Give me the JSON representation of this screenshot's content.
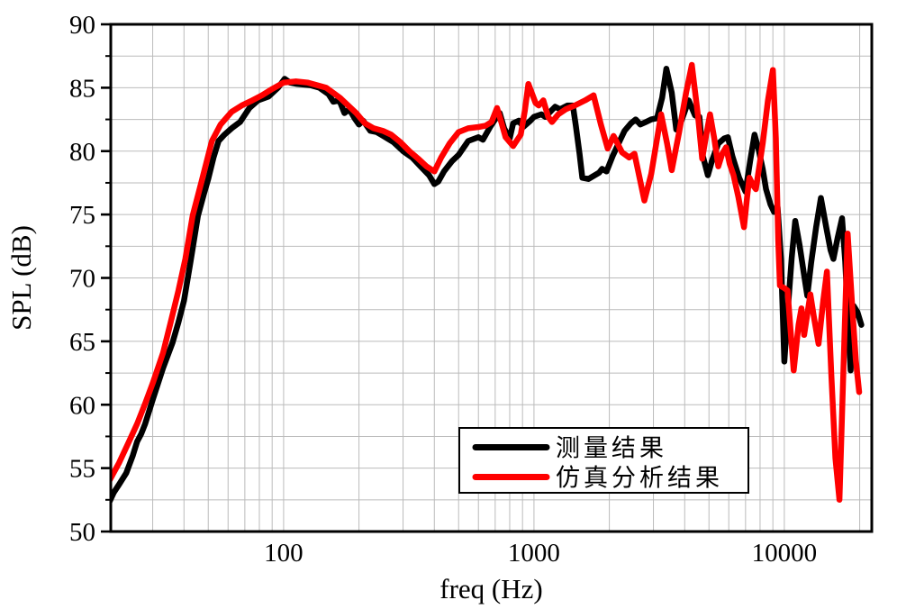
{
  "figure": {
    "background": "#ffffff",
    "frame_color": "#000000",
    "grid_color": "#bbbbbb"
  },
  "chart_data": {
    "type": "line",
    "title": "",
    "xlabel": "freq (Hz)",
    "ylabel": "SPL (dB)",
    "x_scale": "log",
    "xlim": [
      20.4,
      22350
    ],
    "ylim": [
      50,
      90
    ],
    "x_major_ticks": [
      100,
      1000,
      10000
    ],
    "x_tick_labels": [
      "100",
      "1000",
      "10000"
    ],
    "y_major_ticks": [
      50,
      55,
      60,
      65,
      70,
      75,
      80,
      85,
      90
    ],
    "y_tick_labels": [
      "50",
      "55",
      "60",
      "65",
      "70",
      "75",
      "80",
      "85",
      "90"
    ],
    "y_minor_step": 2.5,
    "grid": true,
    "legend_position": "inside-bottom-center",
    "legend": {
      "entries": [
        {
          "label": "测量结果",
          "color": "#000000"
        },
        {
          "label": "仿真分析结果",
          "color": "#ff0000"
        }
      ]
    },
    "series": [
      {
        "name": "测量结果",
        "color": "#000000",
        "points": [
          [
            20,
            52.2
          ],
          [
            21,
            53.1
          ],
          [
            22,
            53.7
          ],
          [
            23.5,
            54.6
          ],
          [
            25,
            56.0
          ],
          [
            26,
            57.1
          ],
          [
            27,
            57.7
          ],
          [
            28,
            58.5
          ],
          [
            30,
            60.4
          ],
          [
            33,
            62.9
          ],
          [
            36,
            64.9
          ],
          [
            38,
            66.5
          ],
          [
            40,
            68.2
          ],
          [
            42.5,
            71.3
          ],
          [
            45.5,
            74.9
          ],
          [
            48,
            76.6
          ],
          [
            50,
            77.8
          ],
          [
            52.5,
            79.5
          ],
          [
            55,
            80.8
          ],
          [
            58,
            81.3
          ],
          [
            62,
            81.8
          ],
          [
            67,
            82.3
          ],
          [
            73,
            83.4
          ],
          [
            79,
            84.0
          ],
          [
            87,
            84.3
          ],
          [
            95,
            85.0
          ],
          [
            101,
            85.7
          ],
          [
            106,
            85.4
          ],
          [
            113,
            85.3
          ],
          [
            128,
            85.2
          ],
          [
            139,
            85.0
          ],
          [
            151,
            84.5
          ],
          [
            158,
            83.9
          ],
          [
            167,
            84.0
          ],
          [
            175,
            83.0
          ],
          [
            183,
            83.3
          ],
          [
            192,
            82.6
          ],
          [
            200,
            82.1
          ],
          [
            208,
            82.4
          ],
          [
            222,
            81.6
          ],
          [
            235,
            81.5
          ],
          [
            245,
            81.3
          ],
          [
            255,
            81.1
          ],
          [
            275,
            80.7
          ],
          [
            300,
            80.0
          ],
          [
            326,
            79.5
          ],
          [
            352,
            78.8
          ],
          [
            381,
            78.1
          ],
          [
            400,
            77.4
          ],
          [
            415,
            77.6
          ],
          [
            437,
            78.4
          ],
          [
            470,
            79.2
          ],
          [
            500,
            79.7
          ],
          [
            546,
            80.8
          ],
          [
            600,
            81.1
          ],
          [
            625,
            80.9
          ],
          [
            668,
            81.9
          ],
          [
            700,
            82.5
          ],
          [
            730,
            83.0
          ],
          [
            760,
            81.8
          ],
          [
            800,
            81.0
          ],
          [
            826,
            82.2
          ],
          [
            870,
            82.4
          ],
          [
            905,
            81.9
          ],
          [
            967,
            82.4
          ],
          [
            1000,
            82.7
          ],
          [
            1070,
            82.9
          ],
          [
            1110,
            82.7
          ],
          [
            1215,
            83.5
          ],
          [
            1270,
            83.3
          ],
          [
            1360,
            83.6
          ],
          [
            1430,
            83.6
          ],
          [
            1470,
            82.0
          ],
          [
            1520,
            79.8
          ],
          [
            1560,
            77.9
          ],
          [
            1650,
            77.8
          ],
          [
            1820,
            78.3
          ],
          [
            1870,
            78.6
          ],
          [
            1950,
            78.4
          ],
          [
            2060,
            79.6
          ],
          [
            2200,
            80.8
          ],
          [
            2300,
            81.6
          ],
          [
            2440,
            82.2
          ],
          [
            2550,
            82.5
          ],
          [
            2660,
            82.1
          ],
          [
            2800,
            82.3
          ],
          [
            2940,
            82.5
          ],
          [
            3100,
            82.6
          ],
          [
            3250,
            84.2
          ],
          [
            3380,
            86.5
          ],
          [
            3550,
            84.6
          ],
          [
            3700,
            81.7
          ],
          [
            3900,
            82.5
          ],
          [
            4150,
            84.0
          ],
          [
            4400,
            82.8
          ],
          [
            4580,
            82.7
          ],
          [
            4730,
            79.6
          ],
          [
            4950,
            78.1
          ],
          [
            5150,
            79.3
          ],
          [
            5450,
            80.6
          ],
          [
            5750,
            81.0
          ],
          [
            5950,
            81.1
          ],
          [
            6200,
            79.6
          ],
          [
            6600,
            77.9
          ],
          [
            7000,
            76.8
          ],
          [
            7300,
            79.2
          ],
          [
            7600,
            81.3
          ],
          [
            7900,
            80.1
          ],
          [
            8200,
            78.6
          ],
          [
            8450,
            77.0
          ],
          [
            8800,
            75.8
          ],
          [
            9100,
            75.2
          ],
          [
            9400,
            75.6
          ],
          [
            9700,
            71.5
          ],
          [
            10000,
            63.4
          ],
          [
            10350,
            67.8
          ],
          [
            10700,
            71.6
          ],
          [
            11050,
            74.5
          ],
          [
            11500,
            72.6
          ],
          [
            12000,
            70.2
          ],
          [
            12350,
            68.6
          ],
          [
            12800,
            71.2
          ],
          [
            13400,
            74.0
          ],
          [
            14000,
            76.3
          ],
          [
            14700,
            74.0
          ],
          [
            15300,
            72.2
          ],
          [
            15700,
            71.5
          ],
          [
            16300,
            73.1
          ],
          [
            17000,
            74.7
          ],
          [
            17500,
            71.3
          ],
          [
            18000,
            66.3
          ],
          [
            18400,
            62.7
          ],
          [
            18900,
            67.8
          ],
          [
            19600,
            67.3
          ],
          [
            20300,
            66.3
          ]
        ]
      },
      {
        "name": "仿真分析结果",
        "color": "#ff0000",
        "points": [
          [
            20,
            53.9
          ],
          [
            22,
            55.4
          ],
          [
            24,
            57.0
          ],
          [
            26,
            58.5
          ],
          [
            28,
            60.1
          ],
          [
            30,
            61.7
          ],
          [
            33,
            64.1
          ],
          [
            35.4,
            66.5
          ],
          [
            38,
            69.0
          ],
          [
            40.5,
            71.5
          ],
          [
            43.3,
            74.9
          ],
          [
            47,
            77.6
          ],
          [
            51.7,
            80.8
          ],
          [
            56,
            82.1
          ],
          [
            62,
            83.1
          ],
          [
            68,
            83.6
          ],
          [
            75,
            84.0
          ],
          [
            82,
            84.4
          ],
          [
            90,
            84.9
          ],
          [
            100,
            85.4
          ],
          [
            112,
            85.5
          ],
          [
            125,
            85.4
          ],
          [
            148,
            85.0
          ],
          [
            168,
            84.2
          ],
          [
            195,
            83.0
          ],
          [
            211,
            82.2
          ],
          [
            229,
            81.8
          ],
          [
            249,
            81.6
          ],
          [
            269,
            81.3
          ],
          [
            293,
            80.7
          ],
          [
            318,
            80.0
          ],
          [
            345,
            79.4
          ],
          [
            372,
            78.8
          ],
          [
            400,
            78.4
          ],
          [
            426,
            79.5
          ],
          [
            460,
            80.6
          ],
          [
            500,
            81.5
          ],
          [
            546,
            81.8
          ],
          [
            600,
            81.9
          ],
          [
            640,
            82.0
          ],
          [
            677,
            82.3
          ],
          [
            712,
            83.4
          ],
          [
            740,
            82.3
          ],
          [
            770,
            81.1
          ],
          [
            826,
            80.4
          ],
          [
            885,
            81.3
          ],
          [
            920,
            83.2
          ],
          [
            950,
            85.3
          ],
          [
            1015,
            83.8
          ],
          [
            1045,
            83.6
          ],
          [
            1090,
            84.0
          ],
          [
            1140,
            82.7
          ],
          [
            1180,
            82.3
          ],
          [
            1250,
            82.9
          ],
          [
            1340,
            83.3
          ],
          [
            1455,
            83.6
          ],
          [
            1600,
            84.0
          ],
          [
            1730,
            84.4
          ],
          [
            1850,
            82.1
          ],
          [
            1970,
            80.2
          ],
          [
            2080,
            81.2
          ],
          [
            2250,
            79.9
          ],
          [
            2400,
            79.5
          ],
          [
            2520,
            79.8
          ],
          [
            2760,
            76.1
          ],
          [
            2940,
            78.2
          ],
          [
            3220,
            82.9
          ],
          [
            3400,
            80.6
          ],
          [
            3550,
            78.5
          ],
          [
            3800,
            81.5
          ],
          [
            4050,
            84.6
          ],
          [
            4270,
            86.8
          ],
          [
            4520,
            82.8
          ],
          [
            4700,
            79.4
          ],
          [
            4850,
            81.0
          ],
          [
            5050,
            82.9
          ],
          [
            5250,
            81.0
          ],
          [
            5450,
            78.8
          ],
          [
            5650,
            79.8
          ],
          [
            5850,
            80.3
          ],
          [
            6050,
            79.0
          ],
          [
            6270,
            78.1
          ],
          [
            6550,
            76.4
          ],
          [
            6900,
            74.0
          ],
          [
            7100,
            76.4
          ],
          [
            7250,
            77.9
          ],
          [
            7500,
            77.3
          ],
          [
            7700,
            77.0
          ],
          [
            8200,
            80.6
          ],
          [
            8600,
            84.0
          ],
          [
            9000,
            86.4
          ],
          [
            9250,
            81.0
          ],
          [
            9450,
            73.0
          ],
          [
            9600,
            69.4
          ],
          [
            10000,
            69.2
          ],
          [
            10300,
            69.0
          ],
          [
            10600,
            65.8
          ],
          [
            10900,
            62.7
          ],
          [
            11400,
            66.3
          ],
          [
            11700,
            67.6
          ],
          [
            12000,
            65.5
          ],
          [
            12700,
            68.7
          ],
          [
            13150,
            66.8
          ],
          [
            13700,
            64.8
          ],
          [
            14300,
            68.2
          ],
          [
            14800,
            70.5
          ],
          [
            15400,
            62.5
          ],
          [
            16000,
            55.8
          ],
          [
            16600,
            52.5
          ],
          [
            17200,
            62.5
          ],
          [
            17900,
            73.5
          ],
          [
            18700,
            67.5
          ],
          [
            19300,
            63.5
          ],
          [
            19900,
            61.0
          ]
        ]
      }
    ]
  }
}
